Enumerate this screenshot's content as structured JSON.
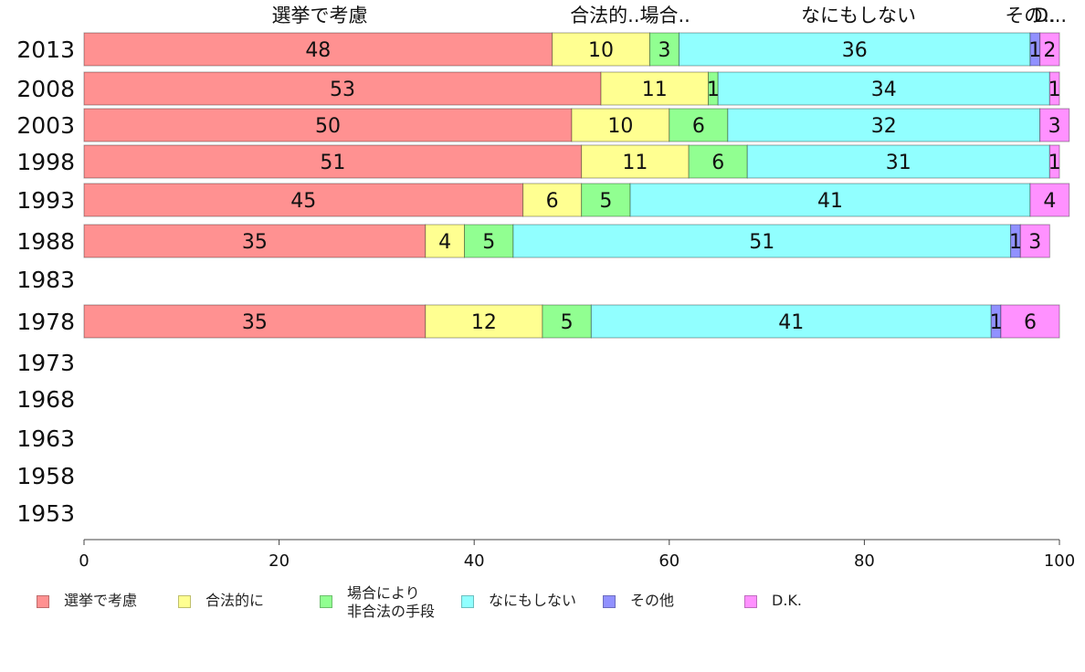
{
  "chart_data": {
    "type": "bar",
    "orientation": "horizontal",
    "stacked": true,
    "categories": [
      "2013",
      "2008",
      "2003",
      "1998",
      "1993",
      "1988",
      "1983",
      "1978",
      "1973",
      "1968",
      "1963",
      "1958",
      "1953"
    ],
    "series": [
      {
        "name": "選挙で考慮",
        "color": "#ff9191",
        "values": [
          48,
          53,
          50,
          51,
          45,
          35,
          null,
          35,
          null,
          null,
          null,
          null,
          null
        ]
      },
      {
        "name": "合法的に",
        "color": "#ffff91",
        "values": [
          10,
          11,
          10,
          11,
          6,
          4,
          null,
          12,
          null,
          null,
          null,
          null,
          null
        ]
      },
      {
        "name": "場合により\n非合法の手段",
        "color": "#91ff91",
        "values": [
          3,
          1,
          6,
          6,
          5,
          5,
          null,
          5,
          null,
          null,
          null,
          null,
          null
        ]
      },
      {
        "name": "なにもしない",
        "color": "#91ffff",
        "values": [
          36,
          34,
          32,
          31,
          41,
          51,
          null,
          41,
          null,
          null,
          null,
          null,
          null
        ]
      },
      {
        "name": "その他",
        "color": "#9191ff",
        "values": [
          1,
          0,
          0,
          0,
          0,
          1,
          null,
          1,
          null,
          null,
          null,
          null,
          null
        ]
      },
      {
        "name": "D.K.",
        "color": "#ff91ff",
        "values": [
          2,
          1,
          3,
          1,
          4,
          3,
          null,
          6,
          null,
          null,
          null,
          null,
          null
        ]
      }
    ],
    "top_labels": [
      "選挙で考慮",
      "合法的..場合..",
      "なにもしない",
      "その..",
      "D..."
    ],
    "xlim": [
      0,
      100
    ],
    "xticks": [
      0,
      20,
      40,
      60,
      80,
      100
    ],
    "xlabel": "",
    "ylabel": "",
    "grid": false,
    "legend_position": "bottom"
  }
}
